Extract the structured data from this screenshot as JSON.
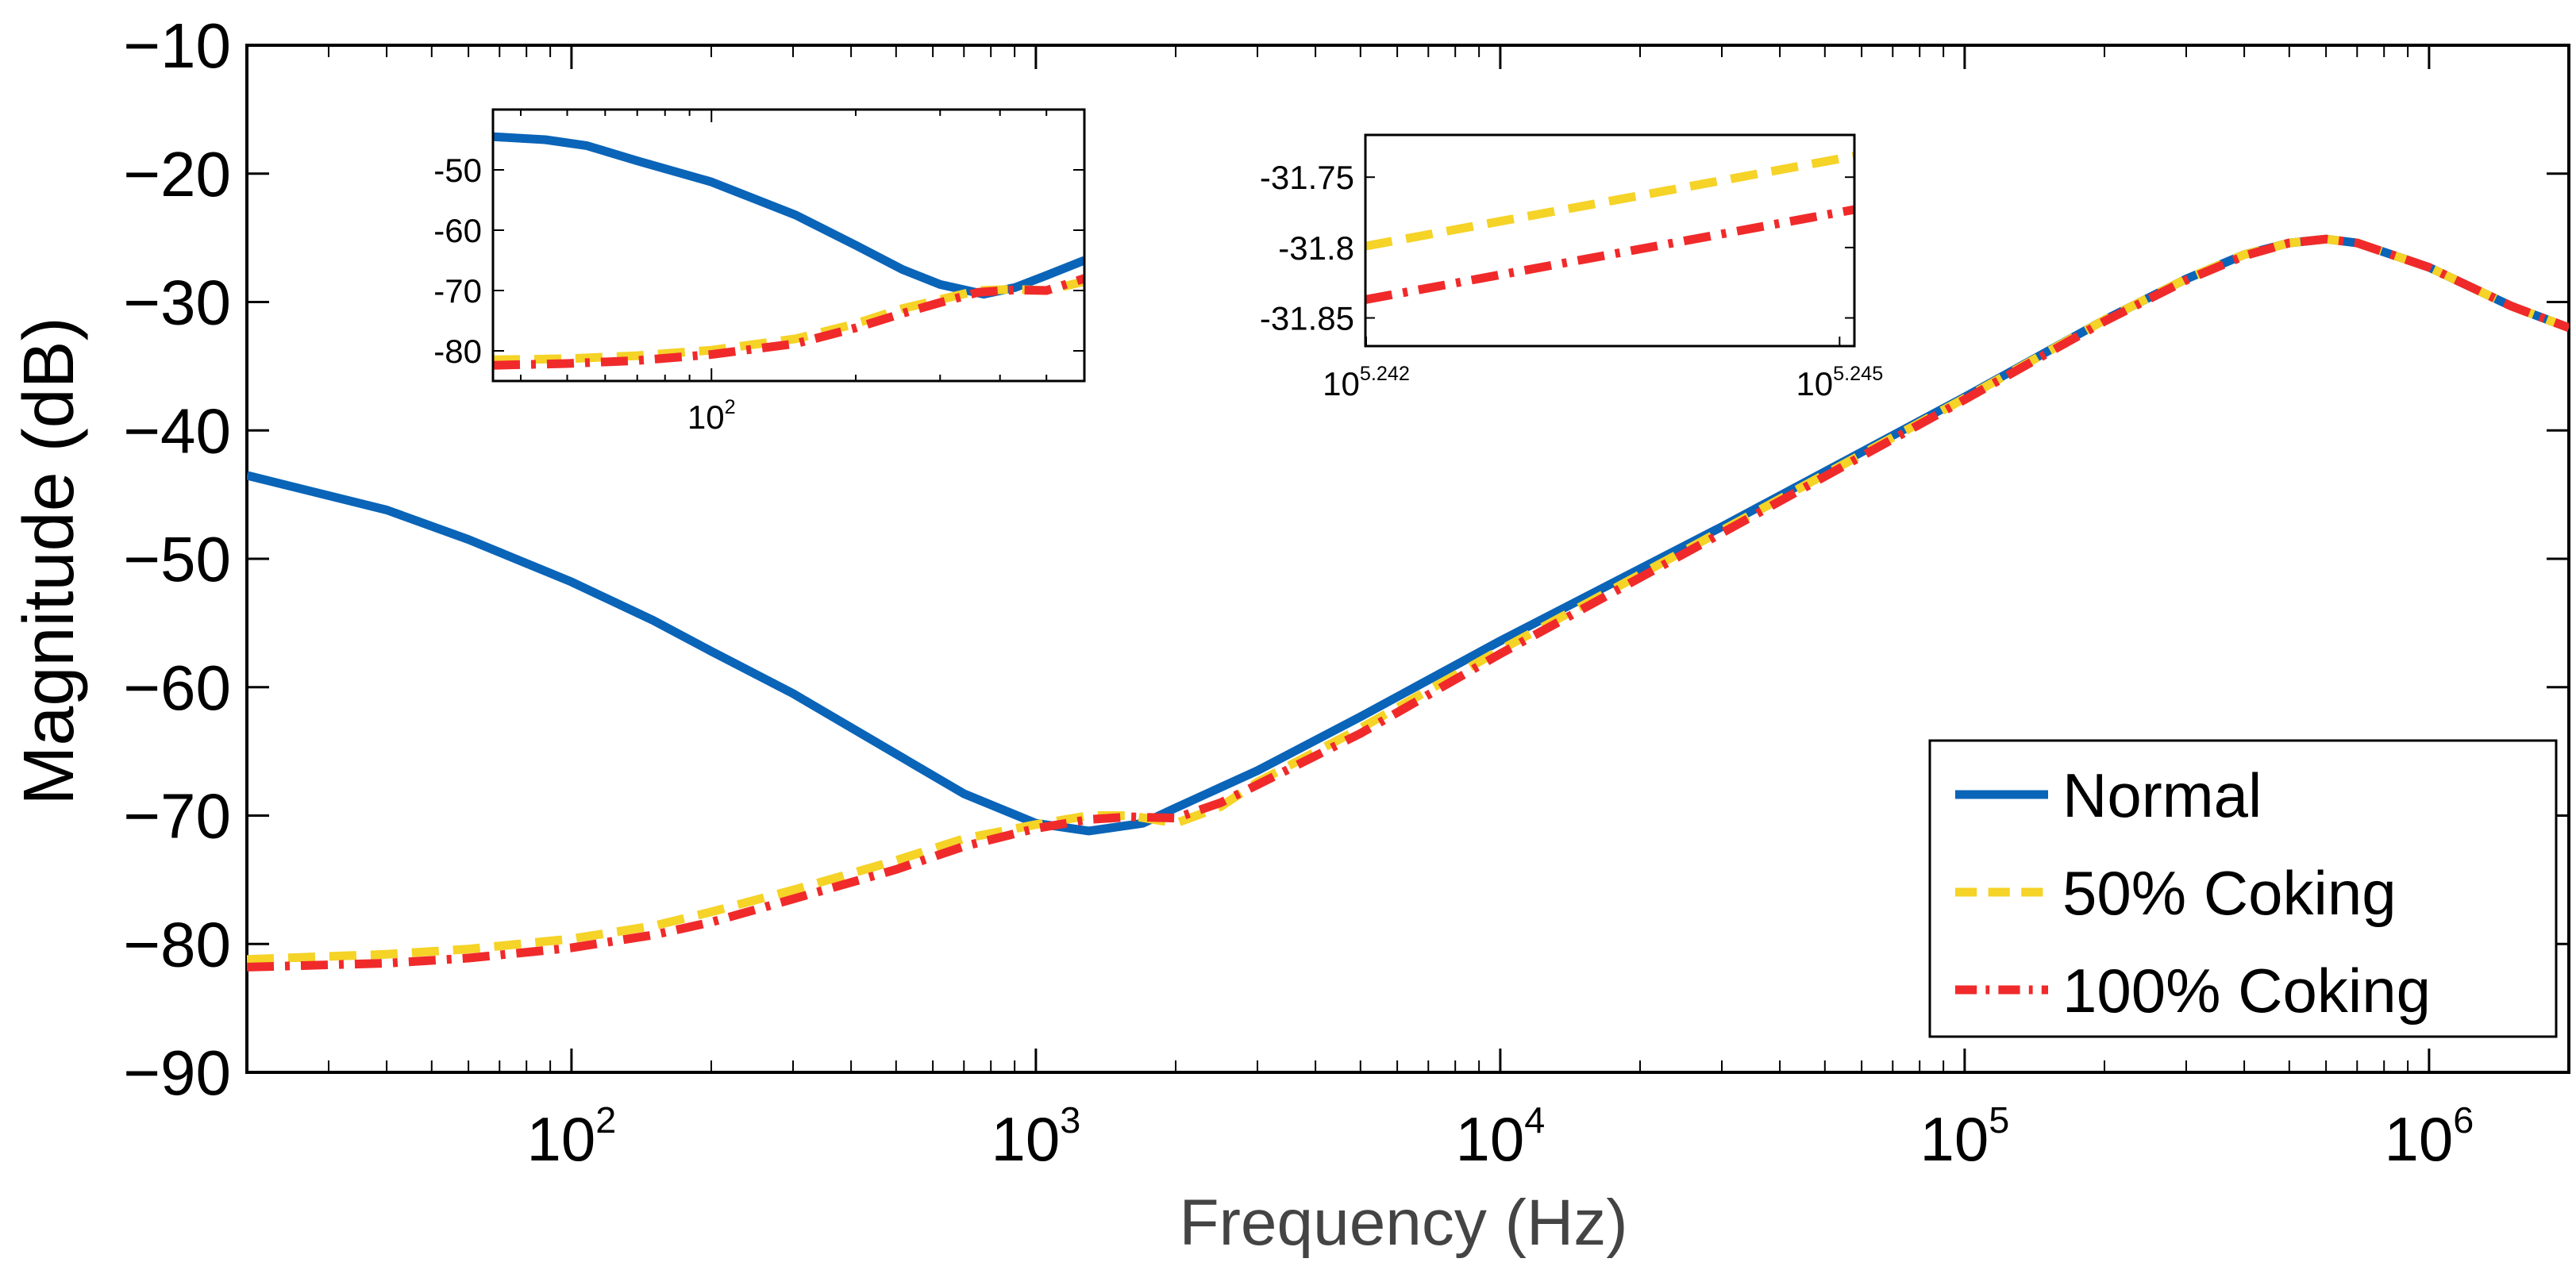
{
  "chart_data": {
    "type": "line",
    "xscale": "log",
    "xlabel": "Frequency (Hz)",
    "ylabel": "Magnitude (dB)",
    "xlim": [
      20,
      2000000
    ],
    "ylim": [
      -90,
      -10
    ],
    "yticks": [
      -10,
      -20,
      -30,
      -40,
      -50,
      -60,
      -70,
      -80,
      -90
    ],
    "ytick_labels": [
      "−10",
      "−20",
      "−30",
      "−40",
      "−50",
      "−60",
      "−70",
      "−80",
      "−90"
    ],
    "xticks": [
      {
        "value": 100,
        "base": "10",
        "exp": "2"
      },
      {
        "value": 1000,
        "base": "10",
        "exp": "3"
      },
      {
        "value": 10000,
        "base": "10",
        "exp": "4"
      },
      {
        "value": 100000,
        "base": "10",
        "exp": "5"
      },
      {
        "value": 1000000,
        "base": "10",
        "exp": "6"
      }
    ],
    "grid": false,
    "legend_position": "bottom-right",
    "series": [
      {
        "name": "Normal",
        "color": "#0a64b8",
        "style": "solid",
        "points": [
          [
            20,
            -43.5
          ],
          [
            40,
            -46.2
          ],
          [
            60,
            -48.5
          ],
          [
            100,
            -51.8
          ],
          [
            150,
            -54.8
          ],
          [
            200,
            -57.2
          ],
          [
            300,
            -60.5
          ],
          [
            500,
            -65.2
          ],
          [
            700,
            -68.3
          ],
          [
            1000,
            -70.6
          ],
          [
            1300,
            -71.2
          ],
          [
            1700,
            -70.6
          ],
          [
            2000,
            -69.4
          ],
          [
            3000,
            -66.5
          ],
          [
            5000,
            -62.3
          ],
          [
            10000,
            -56.4
          ],
          [
            30000,
            -47.5
          ],
          [
            100000,
            -37.4
          ],
          [
            200000,
            -31.4
          ],
          [
            300000,
            -28.2
          ],
          [
            400000,
            -26.3
          ],
          [
            500000,
            -25.4
          ],
          [
            600000,
            -25.1
          ],
          [
            700000,
            -25.4
          ],
          [
            1000000,
            -27.3
          ],
          [
            1500000,
            -30.3
          ],
          [
            2000000,
            -32.0
          ]
        ]
      },
      {
        "name": "50% Coking",
        "color": "#f5d327",
        "style": "dashed",
        "points": [
          [
            20,
            -81.2
          ],
          [
            40,
            -80.8
          ],
          [
            60,
            -80.4
          ],
          [
            100,
            -79.6
          ],
          [
            150,
            -78.6
          ],
          [
            200,
            -77.5
          ],
          [
            300,
            -75.8
          ],
          [
            500,
            -73.5
          ],
          [
            700,
            -71.8
          ],
          [
            1000,
            -70.7
          ],
          [
            1300,
            -70.0
          ],
          [
            1600,
            -70.0
          ],
          [
            2000,
            -70.6
          ],
          [
            2500,
            -69.3
          ],
          [
            3000,
            -67.4
          ],
          [
            5000,
            -63.2
          ],
          [
            10000,
            -57.1
          ],
          [
            30000,
            -47.8
          ],
          [
            100000,
            -37.5
          ],
          [
            200000,
            -31.4
          ],
          [
            300000,
            -28.2
          ],
          [
            400000,
            -26.3
          ],
          [
            500000,
            -25.4
          ],
          [
            600000,
            -25.1
          ],
          [
            700000,
            -25.4
          ],
          [
            1000000,
            -27.3
          ],
          [
            1500000,
            -30.3
          ],
          [
            2000000,
            -32.0
          ]
        ]
      },
      {
        "name": "100% Coking",
        "color": "#f02a2a",
        "style": "dash-dot",
        "points": [
          [
            20,
            -81.8
          ],
          [
            40,
            -81.5
          ],
          [
            60,
            -81.1
          ],
          [
            100,
            -80.3
          ],
          [
            150,
            -79.3
          ],
          [
            200,
            -78.3
          ],
          [
            300,
            -76.5
          ],
          [
            500,
            -74.2
          ],
          [
            700,
            -72.4
          ],
          [
            1000,
            -71.0
          ],
          [
            1300,
            -70.3
          ],
          [
            1600,
            -70.1
          ],
          [
            2000,
            -70.2
          ],
          [
            2500,
            -69.0
          ],
          [
            3000,
            -67.6
          ],
          [
            5000,
            -63.6
          ],
          [
            10000,
            -57.4
          ],
          [
            30000,
            -48.0
          ],
          [
            100000,
            -37.6
          ],
          [
            200000,
            -31.5
          ],
          [
            300000,
            -28.3
          ],
          [
            400000,
            -26.4
          ],
          [
            500000,
            -25.4
          ],
          [
            600000,
            -25.1
          ],
          [
            700000,
            -25.4
          ],
          [
            1000000,
            -27.3
          ],
          [
            1500000,
            -30.3
          ],
          [
            2000000,
            -32.0
          ]
        ]
      }
    ],
    "insets": [
      {
        "name": "inset-low-frequency",
        "xscale": "log",
        "xlim": [
          35,
          600
        ],
        "ylim": [
          -85,
          -40
        ],
        "yticks": [
          -50,
          -60,
          -70,
          -80
        ],
        "ytick_labels": [
          "-50",
          "-60",
          "-70",
          "-80"
        ],
        "xticks": [
          {
            "value": 100,
            "base": "10",
            "exp": "2"
          }
        ],
        "series": [
          {
            "name": "Normal",
            "points": [
              [
                35,
                -44.5
              ],
              [
                45,
                -45.0
              ],
              [
                55,
                -46.0
              ],
              [
                70,
                -48.5
              ],
              [
                100,
                -52.0
              ],
              [
                150,
                -57.5
              ],
              [
                200,
                -62.5
              ],
              [
                250,
                -66.5
              ],
              [
                300,
                -69.0
              ],
              [
                370,
                -70.6
              ],
              [
                430,
                -69.5
              ],
              [
                500,
                -67.5
              ],
              [
                600,
                -65.0
              ]
            ]
          },
          {
            "name": "50% Coking",
            "points": [
              [
                35,
                -81.5
              ],
              [
                50,
                -81.3
              ],
              [
                70,
                -80.8
              ],
              [
                100,
                -79.9
              ],
              [
                150,
                -78.0
              ],
              [
                200,
                -75.5
              ],
              [
                250,
                -73.0
              ],
              [
                300,
                -71.5
              ],
              [
                360,
                -70.0
              ],
              [
                430,
                -69.8
              ],
              [
                500,
                -70.0
              ],
              [
                600,
                -68.5
              ]
            ]
          },
          {
            "name": "100% Coking",
            "points": [
              [
                35,
                -82.4
              ],
              [
                50,
                -82.1
              ],
              [
                70,
                -81.6
              ],
              [
                100,
                -80.6
              ],
              [
                150,
                -78.8
              ],
              [
                200,
                -76.2
              ],
              [
                250,
                -73.8
              ],
              [
                300,
                -72.0
              ],
              [
                360,
                -70.3
              ],
              [
                430,
                -69.9
              ],
              [
                500,
                -70.0
              ],
              [
                600,
                -68.0
              ]
            ]
          }
        ]
      },
      {
        "name": "inset-zoom-5.24",
        "xscale": "log",
        "xlim": [
          174580,
          175830
        ],
        "ylim": [
          -31.87,
          -31.72
        ],
        "yticks": [
          -31.75,
          -31.8,
          -31.85
        ],
        "ytick_labels": [
          "-31.75",
          "-31.8",
          "-31.85"
        ],
        "xticks": [
          {
            "value": 174582,
            "base": "10",
            "exp": "5.242"
          },
          {
            "value": 175792,
            "base": "10",
            "exp": "5.245"
          }
        ],
        "series": [
          {
            "name": "50% Coking",
            "points": [
              [
                174580,
                -31.799
              ],
              [
                175830,
                -31.735
              ]
            ]
          },
          {
            "name": "100% Coking",
            "points": [
              [
                174580,
                -31.837
              ],
              [
                175830,
                -31.773
              ]
            ]
          }
        ]
      }
    ]
  }
}
